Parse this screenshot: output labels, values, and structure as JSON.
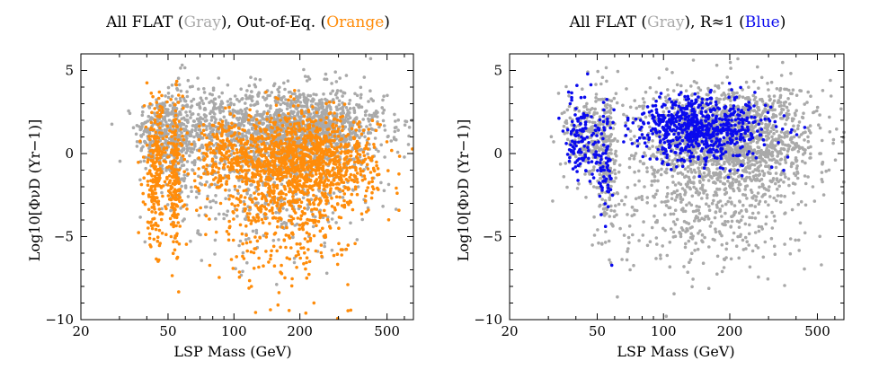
{
  "colors": {
    "gray": "#a9a9a9",
    "orange": "#ff8c0a",
    "blue": "#0a0aee"
  },
  "chart_data": [
    {
      "type": "scatter",
      "title": {
        "pre": "All FLAT (",
        "gray_word": "Gray",
        "mid": "), Out-of-Eq. (",
        "accent_word": "Orange",
        "post": ")"
      },
      "xlabel": "LSP Mass (GeV)",
      "ylabel": "Log10[ΦνD (Yr−1)]",
      "x_scale": "log",
      "xlim": [
        20,
        660
      ],
      "ylim": [
        -10,
        6
      ],
      "x_ticks": [
        20,
        50,
        100,
        200,
        500
      ],
      "y_ticks": [
        5,
        0,
        -5,
        -10
      ],
      "grid": false,
      "series": [
        {
          "color_key": "gray",
          "region_clusters": [
            {
              "x_center": 45,
              "x_spread": 0.12,
              "y_center": 1.2,
              "y_spread": 1.2,
              "count": 220
            },
            {
              "x_center": 55,
              "x_spread": 0.06,
              "y_center": 0.5,
              "y_spread": 2.0,
              "count": 160
            },
            {
              "x_center": 70,
              "x_spread": 0.2,
              "y_center": 1.5,
              "y_spread": 1.2,
              "count": 240
            },
            {
              "x_center": 200,
              "x_spread": 0.45,
              "y_center": 1.6,
              "y_spread": 1.2,
              "count": 1300
            },
            {
              "x_center": 150,
              "x_spread": 0.5,
              "y_center": -1.5,
              "y_spread": 2.2,
              "count": 500
            }
          ]
        },
        {
          "color_key": "orange",
          "region_clusters": [
            {
              "x_center": 44,
              "x_spread": 0.06,
              "y_center": -1.0,
              "y_spread": 2.2,
              "count": 240
            },
            {
              "x_center": 54,
              "x_spread": 0.04,
              "y_center": -1.5,
              "y_spread": 2.2,
              "count": 180
            },
            {
              "x_center": 90,
              "x_spread": 0.15,
              "y_center": -0.2,
              "y_spread": 1.0,
              "count": 160
            },
            {
              "x_center": 200,
              "x_spread": 0.4,
              "y_center": -0.5,
              "y_spread": 1.4,
              "count": 1300
            },
            {
              "x_center": 170,
              "x_spread": 0.35,
              "y_center": -4.0,
              "y_spread": 2.0,
              "count": 300
            }
          ]
        }
      ]
    },
    {
      "type": "scatter",
      "title": {
        "pre": "All FLAT (",
        "gray_word": "Gray",
        "mid": "), R≈1 (",
        "accent_word": "Blue",
        "post": ")"
      },
      "xlabel": "LSP Mass (GeV)",
      "ylabel": "Log10[ΦνD (Yr−1)]",
      "x_scale": "log",
      "xlim": [
        20,
        660
      ],
      "ylim": [
        -10,
        6
      ],
      "x_ticks": [
        20,
        50,
        100,
        200,
        500
      ],
      "y_ticks": [
        5,
        0,
        -5,
        -10
      ],
      "grid": false,
      "series": [
        {
          "color_key": "gray",
          "region_clusters": [
            {
              "x_center": 45,
              "x_spread": 0.12,
              "y_center": 1.0,
              "y_spread": 1.3,
              "count": 220
            },
            {
              "x_center": 55,
              "x_spread": 0.06,
              "y_center": -0.5,
              "y_spread": 2.5,
              "count": 200
            },
            {
              "x_center": 200,
              "x_spread": 0.45,
              "y_center": 1.0,
              "y_spread": 1.6,
              "count": 1500
            },
            {
              "x_center": 160,
              "x_spread": 0.5,
              "y_center": -3.0,
              "y_spread": 2.2,
              "count": 500
            }
          ]
        },
        {
          "color_key": "blue",
          "region_clusters": [
            {
              "x_center": 42,
              "x_spread": 0.08,
              "y_center": 1.0,
              "y_spread": 1.2,
              "count": 120
            },
            {
              "x_center": 54,
              "x_spread": 0.04,
              "y_center": -0.5,
              "y_spread": 2.0,
              "count": 70
            },
            {
              "x_center": 150,
              "x_spread": 0.35,
              "y_center": 1.5,
              "y_spread": 1.0,
              "count": 700
            }
          ]
        }
      ]
    }
  ]
}
